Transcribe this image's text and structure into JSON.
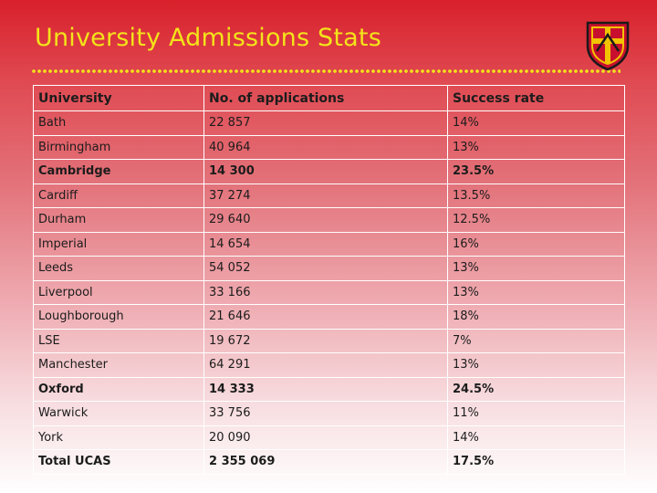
{
  "slide": {
    "title": "University Admissions Stats",
    "colors": {
      "title": "#f3e31a",
      "crest_red": "#c8102e",
      "crest_gold": "#f2c300"
    }
  },
  "crest": {
    "icon": "university-crest-icon"
  },
  "table": {
    "columns": [
      "University",
      "No. of applications",
      "Success rate"
    ],
    "rows": [
      {
        "university": "Bath",
        "applications": "22 857",
        "success_rate": "14%",
        "bold": false
      },
      {
        "university": "Birmingham",
        "applications": "40 964",
        "success_rate": "13%",
        "bold": false
      },
      {
        "university": "Cambridge",
        "applications": "14 300",
        "success_rate": "23.5%",
        "bold": true
      },
      {
        "university": "Cardiff",
        "applications": "37 274",
        "success_rate": "13.5%",
        "bold": false
      },
      {
        "university": "Durham",
        "applications": "29 640",
        "success_rate": "12.5%",
        "bold": false
      },
      {
        "university": "Imperial",
        "applications": "14 654",
        "success_rate": "16%",
        "bold": false
      },
      {
        "university": "Leeds",
        "applications": "54 052",
        "success_rate": "13%",
        "bold": false
      },
      {
        "university": "Liverpool",
        "applications": "33 166",
        "success_rate": "13%",
        "bold": false
      },
      {
        "university": "Loughborough",
        "applications": "21 646",
        "success_rate": "18%",
        "bold": false
      },
      {
        "university": "LSE",
        "applications": "19 672",
        "success_rate": "7%",
        "bold": false
      },
      {
        "university": "Manchester",
        "applications": "64 291",
        "success_rate": "13%",
        "bold": false
      },
      {
        "university": "Oxford",
        "applications": "14 333",
        "success_rate": "24.5%",
        "bold": true
      },
      {
        "university": "Warwick",
        "applications": "33 756",
        "success_rate": "11%",
        "bold": false
      },
      {
        "university": "York",
        "applications": "20 090",
        "success_rate": "14%",
        "bold": false
      },
      {
        "university": "Total UCAS",
        "applications": "2 355 069",
        "success_rate": "17.5%",
        "bold": true
      }
    ]
  }
}
